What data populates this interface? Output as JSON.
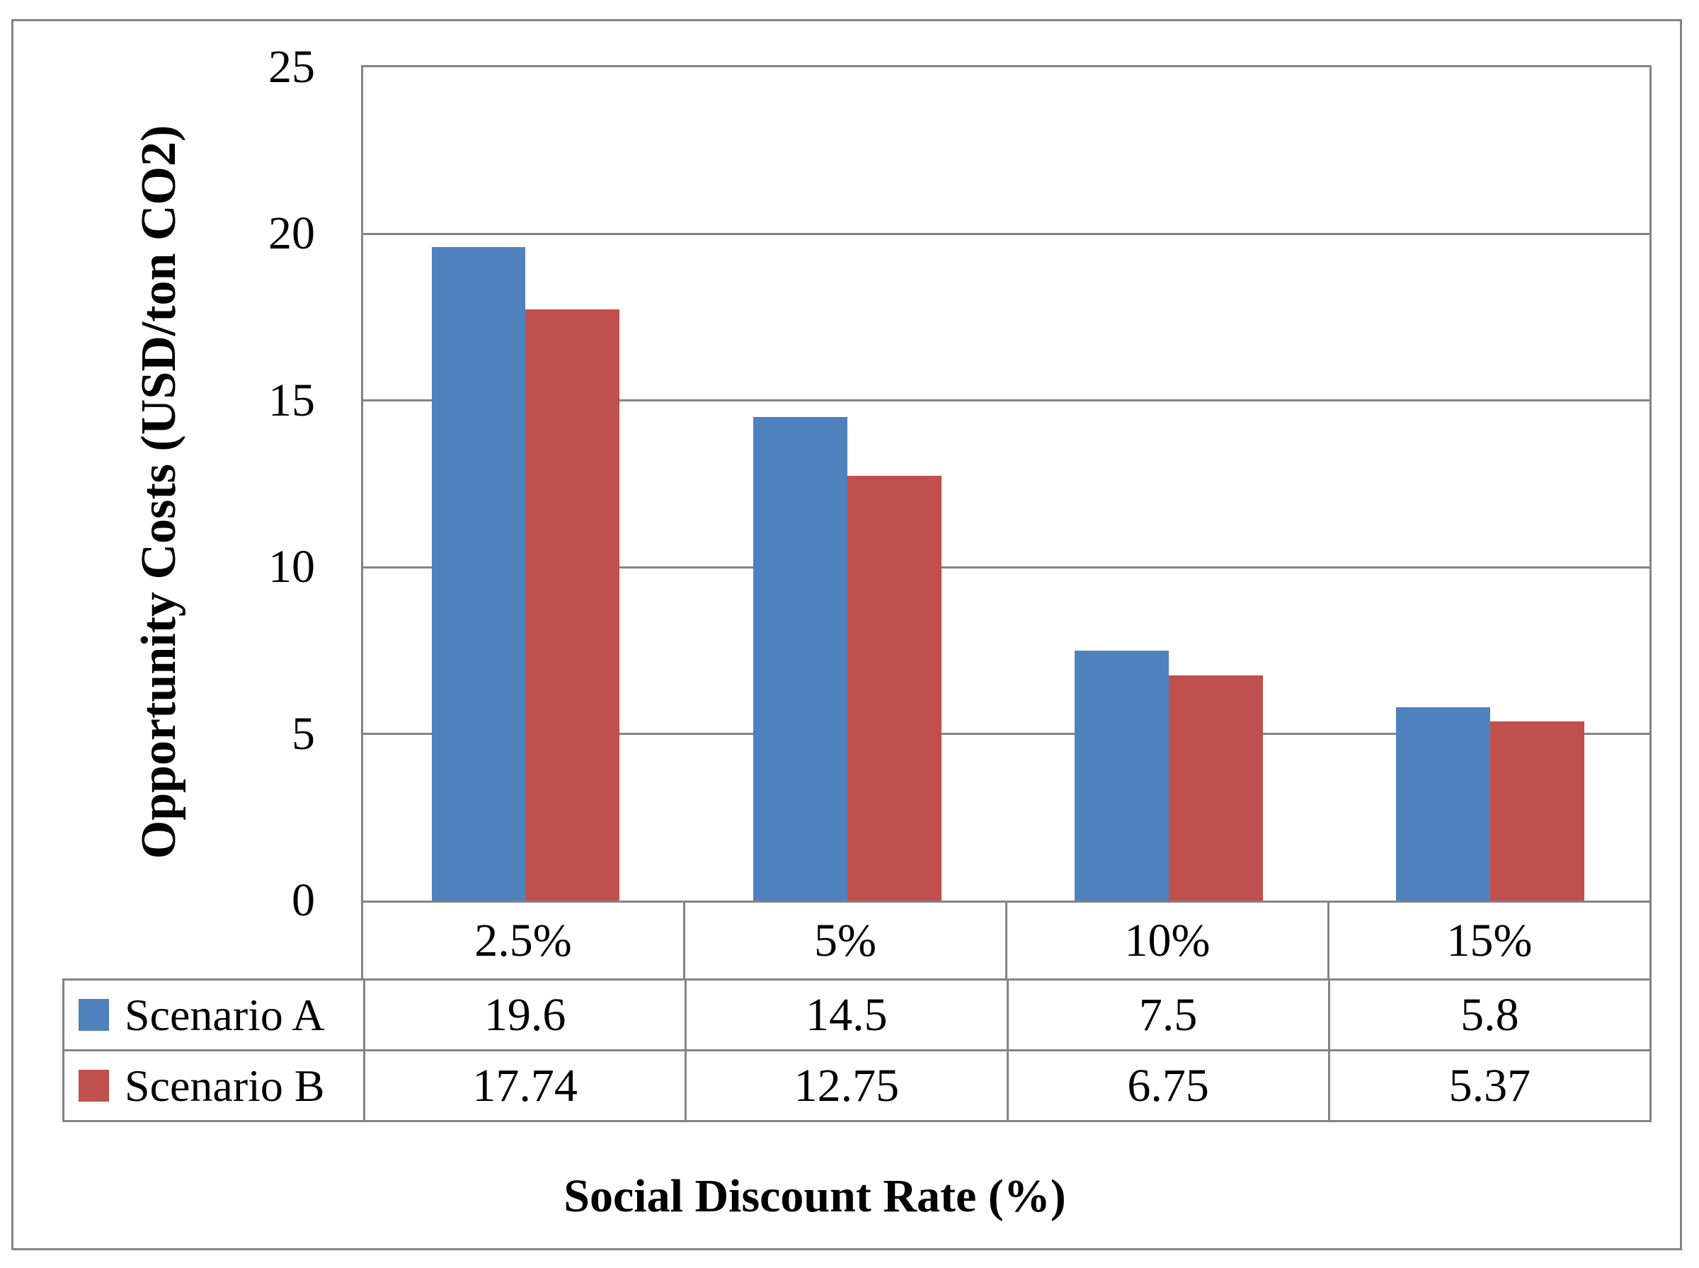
{
  "chart_data": {
    "type": "bar",
    "title": "",
    "xlabel": "Social Discount Rate (%)",
    "ylabel": "Opportunity Costs (USD/ton CO2)",
    "categories": [
      "2.5%",
      "5%",
      "10%",
      "15%"
    ],
    "series": [
      {
        "name": "Scenario A",
        "color": "#4F81BD",
        "values": [
          19.6,
          14.5,
          7.5,
          5.8
        ]
      },
      {
        "name": "Scenario B",
        "color": "#C0504D",
        "values": [
          17.74,
          12.75,
          6.75,
          5.37
        ]
      }
    ],
    "ylim": [
      0,
      25
    ],
    "yticks": [
      0,
      5,
      10,
      15,
      20,
      25
    ],
    "ytick_labels": [
      "0",
      "5",
      "10",
      "15",
      "20",
      "25"
    ],
    "grid": true,
    "legend_position": "data-table-left",
    "data_table_shown": true
  },
  "colors": {
    "series_a": "#4F81BD",
    "series_b": "#C0504D",
    "grid_and_border": "#848484",
    "text": "#000000",
    "background": "#FFFFFF"
  }
}
